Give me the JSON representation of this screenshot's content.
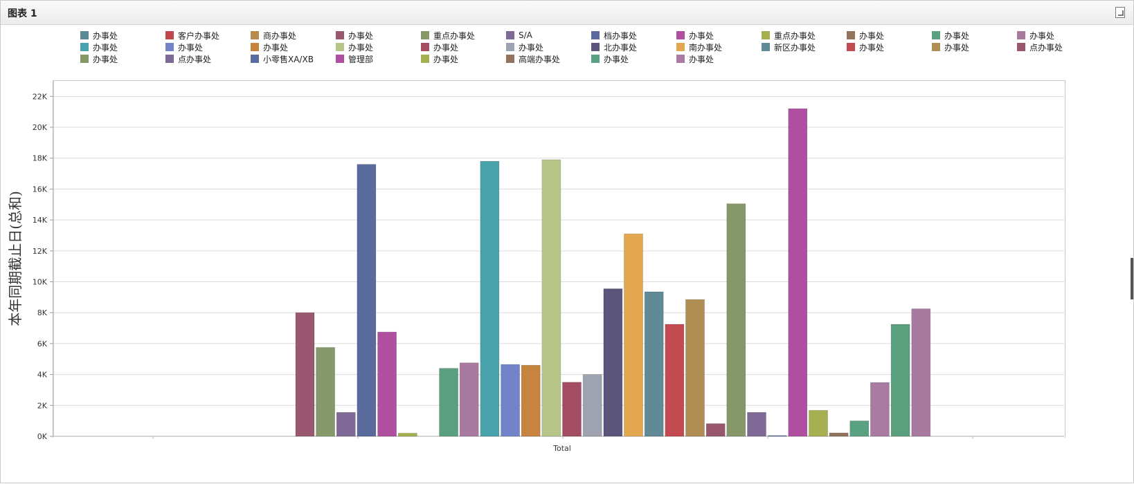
{
  "panel": {
    "title": "图表 1"
  },
  "chart_data": {
    "type": "bar",
    "categories": [
      "Total"
    ],
    "xlabel": "Total",
    "ylabel": "本年同期截止日(总和)",
    "ylim": [
      0,
      23000
    ],
    "yticks": [
      0,
      2000,
      4000,
      6000,
      8000,
      10000,
      12000,
      14000,
      16000,
      18000,
      20000,
      22000
    ],
    "ytick_labels": [
      "0K",
      "2K",
      "4K",
      "6K",
      "8K",
      "10K",
      "12K",
      "14K",
      "16K",
      "18K",
      "20K",
      "22K"
    ],
    "grid": true,
    "legend_placement": "top",
    "series": [
      {
        "name": "办事处",
        "color": "#5b8a96",
        "value": 0
      },
      {
        "name": "客户办事处",
        "color": "#c0484c",
        "value": 0
      },
      {
        "name": "商办事处",
        "color": "#b38c52",
        "value": 0
      },
      {
        "name": "办事处",
        "color": "#9a5870",
        "value": 8000
      },
      {
        "name": "重点办事处",
        "color": "#85996a",
        "value": 5750
      },
      {
        "name": "S/A",
        "color": "#7f6996",
        "value": 1550
      },
      {
        "name": "档办事处",
        "color": "#5a6a9c",
        "value": 17600
      },
      {
        "name": "办事处",
        "color": "#b04fa0",
        "value": 6750
      },
      {
        "name": "重点办事处",
        "color": "#a5af50",
        "value": 200
      },
      {
        "name": "办事处",
        "color": "#94735c",
        "value": 0
      },
      {
        "name": "办事处",
        "color": "#5aa080",
        "value": 4400
      },
      {
        "name": "办事处",
        "color": "#a87aa0",
        "value": 4750
      },
      {
        "name": "办事处",
        "color": "#48a3ac",
        "value": 17800
      },
      {
        "name": "办事处",
        "color": "#7283c8",
        "value": 4650
      },
      {
        "name": "办事处",
        "color": "#c7843e",
        "value": 4600
      },
      {
        "name": "办事处",
        "color": "#b9c68a",
        "value": 17900
      },
      {
        "name": "办事处",
        "color": "#a44c62",
        "value": 3500
      },
      {
        "name": "办事处",
        "color": "#9fa2b0",
        "value": 4000
      },
      {
        "name": "北办事处",
        "color": "#5b557c",
        "value": 9550
      },
      {
        "name": "南办事处",
        "color": "#e3a84f",
        "value": 13100
      },
      {
        "name": "新区办事处",
        "color": "#5f8a96",
        "value": 9350
      },
      {
        "name": "办事处",
        "color": "#c24a50",
        "value": 7250
      },
      {
        "name": "办事处",
        "color": "#b08d52",
        "value": 8850
      },
      {
        "name": "点办事处",
        "color": "#98576c",
        "value": 820
      },
      {
        "name": "办事处",
        "color": "#86986a",
        "value": 15050
      },
      {
        "name": "点办事处",
        "color": "#7e6896",
        "value": 1550
      },
      {
        "name": "小零售XA/XB",
        "color": "#5a6b9e",
        "value": 50
      },
      {
        "name": "管理部",
        "color": "#b04fa1",
        "value": 21200
      },
      {
        "name": "办事处",
        "color": "#a6b050",
        "value": 1680
      },
      {
        "name": "高端办事处",
        "color": "#93735c",
        "value": 220
      },
      {
        "name": "办事处",
        "color": "#5aa181",
        "value": 1000
      },
      {
        "name": "办事处",
        "color": "#a97ba2",
        "value": 3480
      }
    ],
    "tail_bars": [
      {
        "color": "#5aa07f",
        "value": 7250
      },
      {
        "color": "#a87aa0",
        "value": 8250
      }
    ]
  }
}
